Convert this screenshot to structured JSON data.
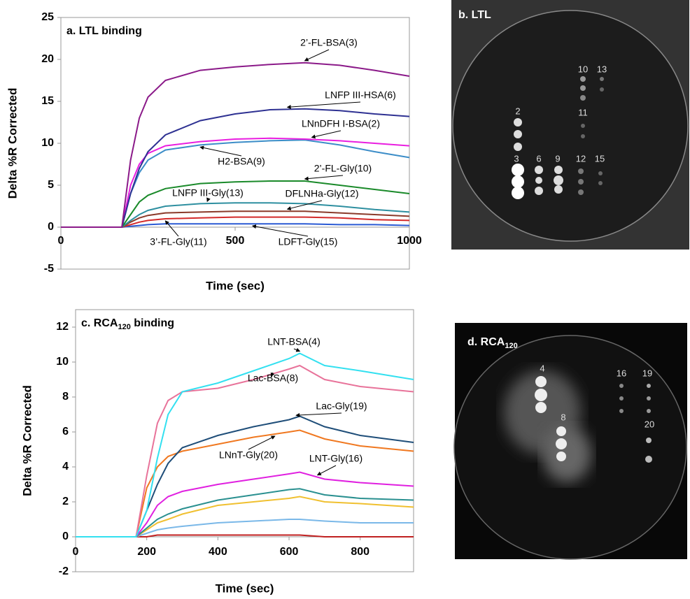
{
  "chart_data": [
    {
      "type": "line",
      "title": "a. LTL binding",
      "xlabel": "Time (sec)",
      "ylabel": "Delta %R Corrected",
      "x": [
        0,
        175,
        200,
        225,
        250,
        300,
        400,
        500,
        600,
        700,
        800,
        900,
        1000
      ],
      "xlim": [
        0,
        1000
      ],
      "xticks": [
        0,
        500,
        1000
      ],
      "ylim": [
        -5,
        25
      ],
      "yticks": [
        -5,
        0,
        5,
        10,
        15,
        20,
        25
      ],
      "series": [
        {
          "name": "2’-FL-BSA(3)",
          "color": "#8b1a89",
          "values": [
            0,
            0,
            8,
            13,
            15.5,
            17.5,
            18.7,
            19.1,
            19.4,
            19.6,
            19.3,
            18.7,
            18
          ]
        },
        {
          "name": "LNFP III-HSA(6)",
          "color": "#2e3192",
          "values": [
            0,
            0,
            4,
            7,
            9,
            11,
            12.7,
            13.5,
            14,
            14.1,
            13.9,
            13.5,
            13.2
          ]
        },
        {
          "name": "LNnDFH I-BSA(2)",
          "color": "#e91ee0",
          "values": [
            0,
            0,
            5,
            7.5,
            8.8,
            9.7,
            10.2,
            10.5,
            10.6,
            10.5,
            10.3,
            10,
            9.7
          ]
        },
        {
          "name": "H2-BSA(9)",
          "color": "#3c8dc8",
          "values": [
            0,
            0,
            4,
            6.5,
            8,
            9.2,
            9.8,
            10.1,
            10.3,
            10.4,
            9.8,
            9,
            8.3
          ]
        },
        {
          "name": "2’-FL-Gly(10)",
          "color": "#1a8a2a",
          "values": [
            0,
            0,
            1.5,
            3,
            3.8,
            4.6,
            5.2,
            5.4,
            5.5,
            5.5,
            5,
            4.5,
            4
          ]
        },
        {
          "name": "LNFP III-Gly(13)",
          "color": "#2e8fa0",
          "values": [
            0,
            0,
            0.8,
            1.5,
            2,
            2.5,
            2.8,
            2.9,
            2.9,
            2.8,
            2.5,
            2.1,
            1.8
          ]
        },
        {
          "name": "DFLNHa-Gly(12)",
          "color": "#8b3a2a",
          "values": [
            0,
            0,
            0.6,
            1.1,
            1.4,
            1.7,
            1.8,
            1.9,
            1.9,
            1.9,
            1.7,
            1.5,
            1.3
          ]
        },
        {
          "name": "3’-FL-Gly(11)",
          "color": "#d42a2a",
          "values": [
            0,
            0,
            0.3,
            0.6,
            0.8,
            1,
            1.1,
            1.2,
            1.2,
            1.2,
            1.1,
            0.9,
            0.8
          ]
        },
        {
          "name": "LDFT-Gly(15)",
          "color": "#2a5ad4",
          "values": [
            0,
            0,
            0.1,
            0.2,
            0.3,
            0.4,
            0.4,
            0.4,
            0.4,
            0.4,
            0.3,
            0.3,
            0.2
          ]
        }
      ]
    },
    {
      "type": "line",
      "title": {
        "main": "c. RCA",
        "sub": "120",
        "rest": " binding"
      },
      "xlabel": "Time (sec)",
      "ylabel": "Delta %R Corrected",
      "x": [
        0,
        170,
        200,
        230,
        260,
        300,
        400,
        500,
        600,
        630,
        700,
        800,
        950
      ],
      "xlim": [
        0,
        950
      ],
      "xticks": [
        0,
        200,
        400,
        600,
        800
      ],
      "ylim": [
        -2,
        13
      ],
      "yticks": [
        -2,
        0,
        2,
        4,
        6,
        8,
        10,
        12
      ],
      "series": [
        {
          "name": "LNT-BSA(4)",
          "color": "#33e0f0",
          "values": [
            0,
            0,
            1.5,
            4.5,
            7,
            8.3,
            8.8,
            9.5,
            10.2,
            10.5,
            9.8,
            9.5,
            9
          ]
        },
        {
          "name": "Lac-BSA(8)",
          "color": "#e8739a",
          "values": [
            0,
            0,
            3.5,
            6.5,
            7.8,
            8.3,
            8.5,
            9,
            9.6,
            9.8,
            9,
            8.6,
            8.3
          ]
        },
        {
          "name": "Lac-Gly(19)",
          "color": "#1f4e79",
          "values": [
            0,
            0,
            1.5,
            3,
            4.2,
            5.1,
            5.8,
            6.3,
            6.7,
            6.9,
            6.3,
            5.8,
            5.4
          ]
        },
        {
          "name": "LNnT-Gly(20)",
          "color": "#f07820",
          "values": [
            0,
            0,
            2.8,
            4,
            4.6,
            4.9,
            5.3,
            5.7,
            6,
            6.1,
            5.6,
            5.2,
            4.9
          ]
        },
        {
          "name": "LNT-Gly(16)",
          "color": "#e020e0",
          "values": [
            0,
            0,
            0.8,
            1.8,
            2.3,
            2.6,
            3,
            3.3,
            3.6,
            3.7,
            3.3,
            3.1,
            2.9
          ]
        },
        {
          "color": "#2a9090",
          "values": [
            0,
            0,
            0.5,
            1,
            1.3,
            1.6,
            2.1,
            2.4,
            2.7,
            2.75,
            2.4,
            2.2,
            2.1
          ]
        },
        {
          "color": "#f0c030",
          "values": [
            0,
            0,
            0.4,
            0.8,
            1,
            1.3,
            1.8,
            2,
            2.2,
            2.3,
            2,
            1.9,
            1.7
          ]
        },
        {
          "color": "#7ab8e8",
          "values": [
            0,
            0,
            0.2,
            0.4,
            0.5,
            0.6,
            0.8,
            0.9,
            1,
            1,
            0.9,
            0.8,
            0.8
          ]
        },
        {
          "color": "#c02020",
          "values": [
            0,
            0,
            0,
            0.1,
            0.1,
            0.1,
            0.1,
            0.1,
            0.1,
            0.1,
            0,
            0,
            0
          ]
        }
      ]
    }
  ],
  "panels": [
    {
      "title": "b. LTL",
      "spot_labels": [
        "10",
        "13",
        "2",
        "11",
        "3",
        "6",
        "9",
        "12",
        "15"
      ]
    },
    {
      "title": {
        "main": "d. RCA",
        "sub": "120"
      },
      "spot_labels": [
        "4",
        "16",
        "19",
        "8",
        "20"
      ]
    }
  ]
}
